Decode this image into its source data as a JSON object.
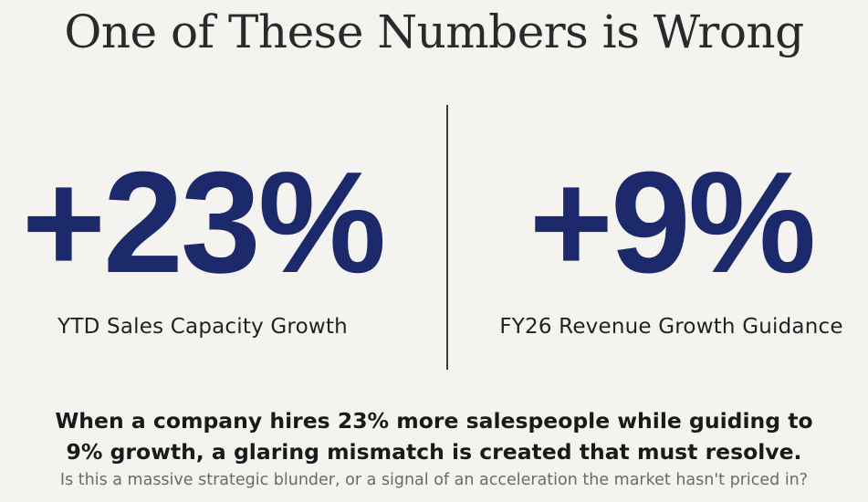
{
  "title": "One of These Numbers is Wrong",
  "stats": {
    "left": {
      "value": "+23%",
      "label": "YTD Sales Capacity Growth"
    },
    "right": {
      "value": "+9%",
      "label": "FY26 Revenue Growth Guidance"
    }
  },
  "headline": {
    "line1": "When a company hires 23% more salespeople while guiding to",
    "line2": "9% growth, a glaring mismatch is created that must resolve."
  },
  "subline": "Is this a massive strategic blunder, or a signal of an acceleration the market hasn't priced in?",
  "colors": {
    "background": "#f5f3ef",
    "accent": "#1c2a6c",
    "text": "#1a1a1a",
    "muted": "#6a6a6a"
  }
}
